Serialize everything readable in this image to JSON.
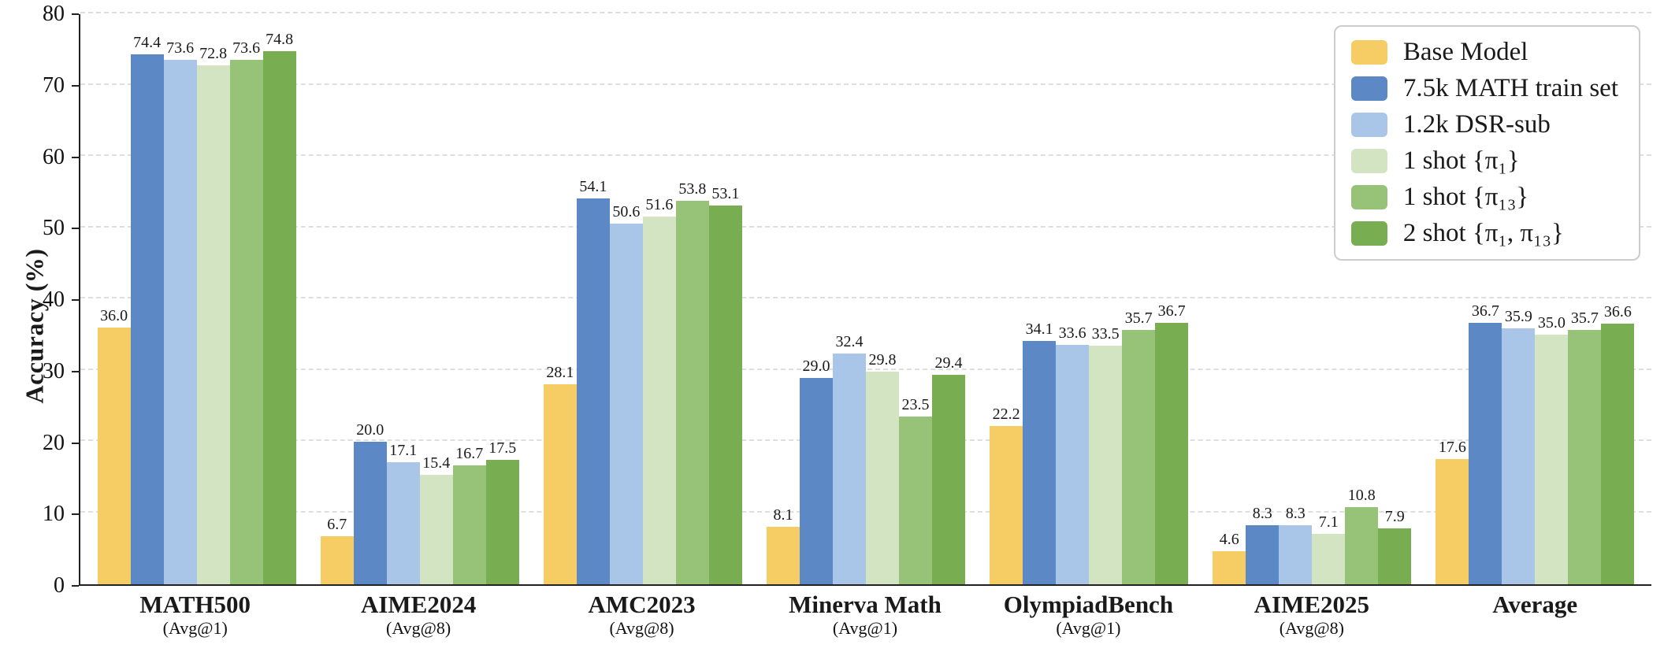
{
  "chart_data": {
    "type": "bar",
    "title": "",
    "xlabel": "",
    "ylabel": "Accuracy (%)",
    "ylim": [
      0,
      80
    ],
    "yticks": [
      0,
      10,
      20,
      30,
      40,
      50,
      60,
      70,
      80
    ],
    "grid": "horizontal-dashed",
    "legend_position": "top-right",
    "value_label_decimals": 1,
    "categories": [
      {
        "label": "MATH500",
        "sublabel": "(Avg@1)"
      },
      {
        "label": "AIME2024",
        "sublabel": "(Avg@8)"
      },
      {
        "label": "AMC2023",
        "sublabel": "(Avg@8)"
      },
      {
        "label": "Minerva Math",
        "sublabel": "(Avg@1)"
      },
      {
        "label": "OlympiadBench",
        "sublabel": "(Avg@1)"
      },
      {
        "label": "AIME2025",
        "sublabel": "(Avg@8)"
      },
      {
        "label": "Average",
        "sublabel": ""
      }
    ],
    "series": [
      {
        "name": "Base Model",
        "color": "#f6cd65",
        "values": [
          36.0,
          6.7,
          28.1,
          8.1,
          22.2,
          4.6,
          17.6
        ]
      },
      {
        "name": "7.5k MATH train set",
        "color": "#5c88c5",
        "values": [
          74.4,
          20.0,
          54.1,
          29.0,
          34.1,
          8.3,
          36.7
        ]
      },
      {
        "name": "1.2k DSR-sub",
        "color": "#a9c6e8",
        "values": [
          73.6,
          17.1,
          50.6,
          32.4,
          33.6,
          8.3,
          35.9
        ]
      },
      {
        "name": "1 shot {π₁}",
        "color": "#d2e4c2",
        "values": [
          72.8,
          15.4,
          51.6,
          29.8,
          33.5,
          7.1,
          35.0
        ]
      },
      {
        "name": "1 shot {π₁₃}",
        "color": "#97c379",
        "values": [
          73.6,
          16.7,
          53.8,
          23.5,
          35.7,
          10.8,
          35.7
        ]
      },
      {
        "name": "2 shot {π₁, π₁₃}",
        "color": "#79ad51",
        "values": [
          74.8,
          17.5,
          53.1,
          29.4,
          36.7,
          7.9,
          36.6
        ]
      }
    ]
  }
}
